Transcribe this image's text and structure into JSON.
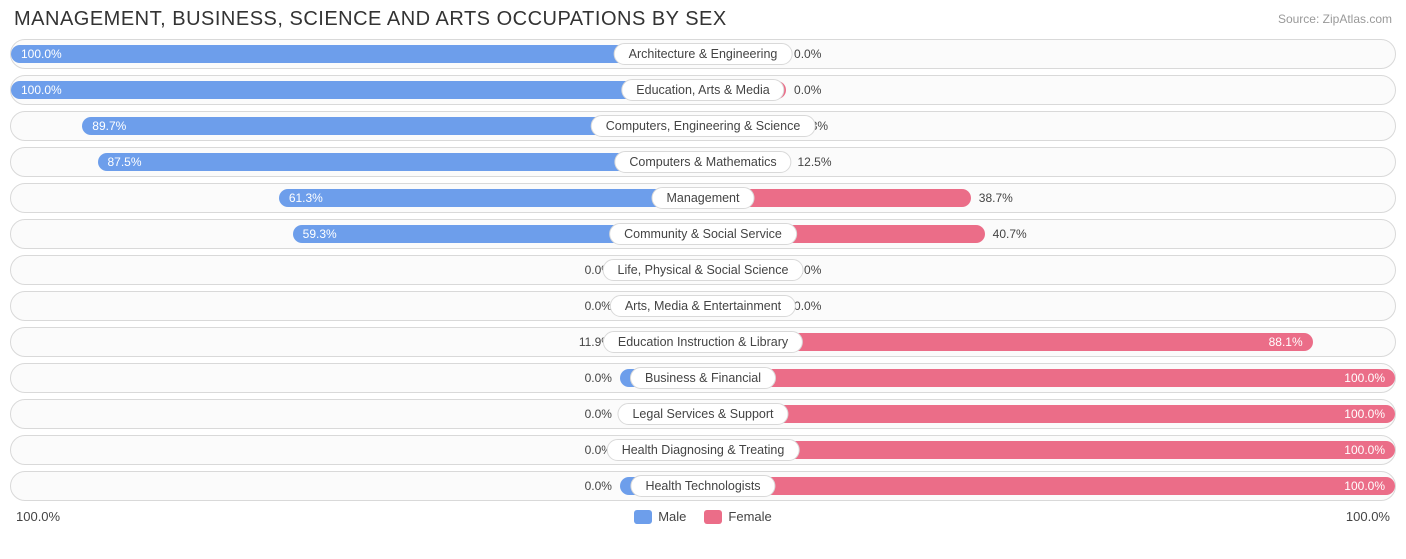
{
  "title": "MANAGEMENT, BUSINESS, SCIENCE AND ARTS OCCUPATIONS BY SEX",
  "source": "Source: ZipAtlas.com",
  "colors": {
    "male": "#6d9eeb",
    "female": "#eb6d88",
    "row_border": "#d9d9d9",
    "row_bg": "#fbfbfb",
    "text": "#444444",
    "muted": "#999999",
    "background": "#ffffff"
  },
  "axis": {
    "left_label": "100.0%",
    "right_label": "100.0%"
  },
  "legend": {
    "male": "Male",
    "female": "Female"
  },
  "min_bar_pct": 12,
  "rows": [
    {
      "category": "Architecture & Engineering",
      "male": 100.0,
      "female": 0.0,
      "male_label": "100.0%",
      "female_label": "0.0%"
    },
    {
      "category": "Education, Arts & Media",
      "male": 100.0,
      "female": 0.0,
      "male_label": "100.0%",
      "female_label": "0.0%"
    },
    {
      "category": "Computers, Engineering & Science",
      "male": 89.7,
      "female": 10.3,
      "male_label": "89.7%",
      "female_label": "10.3%"
    },
    {
      "category": "Computers & Mathematics",
      "male": 87.5,
      "female": 12.5,
      "male_label": "87.5%",
      "female_label": "12.5%"
    },
    {
      "category": "Management",
      "male": 61.3,
      "female": 38.7,
      "male_label": "61.3%",
      "female_label": "38.7%"
    },
    {
      "category": "Community & Social Service",
      "male": 59.3,
      "female": 40.7,
      "male_label": "59.3%",
      "female_label": "40.7%"
    },
    {
      "category": "Life, Physical & Social Science",
      "male": 0.0,
      "female": 0.0,
      "male_label": "0.0%",
      "female_label": "0.0%"
    },
    {
      "category": "Arts, Media & Entertainment",
      "male": 0.0,
      "female": 0.0,
      "male_label": "0.0%",
      "female_label": "0.0%"
    },
    {
      "category": "Education Instruction & Library",
      "male": 11.9,
      "female": 88.1,
      "male_label": "11.9%",
      "female_label": "88.1%"
    },
    {
      "category": "Business & Financial",
      "male": 0.0,
      "female": 100.0,
      "male_label": "0.0%",
      "female_label": "100.0%"
    },
    {
      "category": "Legal Services & Support",
      "male": 0.0,
      "female": 100.0,
      "male_label": "0.0%",
      "female_label": "100.0%"
    },
    {
      "category": "Health Diagnosing & Treating",
      "male": 0.0,
      "female": 100.0,
      "male_label": "0.0%",
      "female_label": "100.0%"
    },
    {
      "category": "Health Technologists",
      "male": 0.0,
      "female": 100.0,
      "male_label": "0.0%",
      "female_label": "100.0%"
    }
  ]
}
